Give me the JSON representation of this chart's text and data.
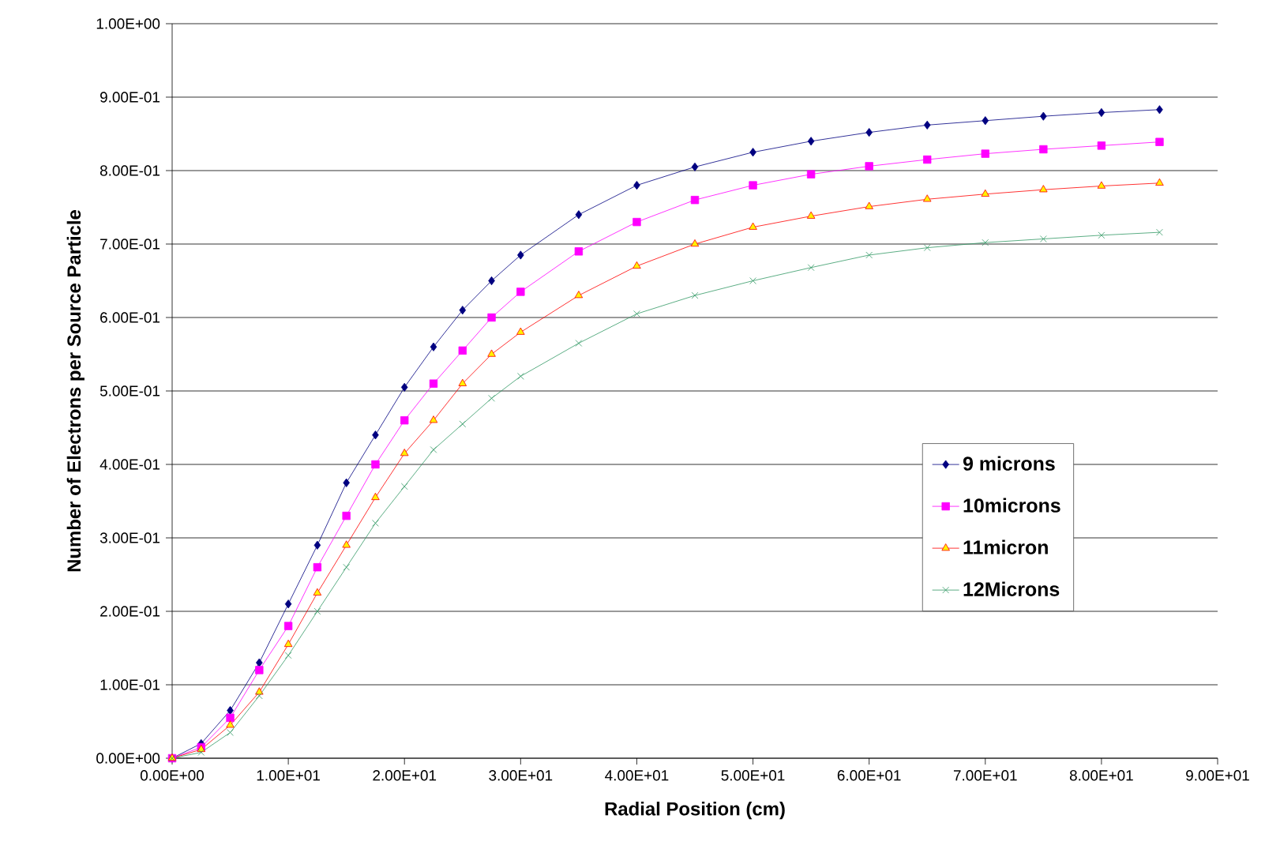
{
  "chart_data": {
    "type": "line",
    "xlabel": "Radial Position (cm)",
    "ylabel": "Number of Electrons per Source Particle",
    "x": [
      0,
      2.5,
      5,
      7.5,
      10,
      12.5,
      15,
      17.5,
      20,
      22.5,
      25,
      27.5,
      30,
      35,
      40,
      45,
      50,
      55,
      60,
      65,
      70,
      75,
      80,
      85
    ],
    "series": [
      {
        "name": "9 microns",
        "color": "#000080",
        "marker": "diamond",
        "values": [
          0,
          0.02,
          0.065,
          0.13,
          0.21,
          0.29,
          0.375,
          0.44,
          0.505,
          0.56,
          0.61,
          0.65,
          0.685,
          0.74,
          0.78,
          0.805,
          0.825,
          0.84,
          0.852,
          0.862,
          0.868,
          0.874,
          0.879,
          0.883
        ]
      },
      {
        "name": "10microns",
        "color": "#ff00ff",
        "marker": "square",
        "values": [
          0,
          0.015,
          0.055,
          0.12,
          0.18,
          0.26,
          0.33,
          0.4,
          0.46,
          0.51,
          0.555,
          0.6,
          0.635,
          0.69,
          0.73,
          0.76,
          0.78,
          0.795,
          0.806,
          0.815,
          0.823,
          0.829,
          0.834,
          0.839
        ]
      },
      {
        "name": "11micron",
        "color": "#ff0000",
        "marker": "triangle",
        "values": [
          0,
          0.012,
          0.045,
          0.09,
          0.155,
          0.225,
          0.29,
          0.355,
          0.415,
          0.46,
          0.51,
          0.55,
          0.58,
          0.63,
          0.67,
          0.7,
          0.723,
          0.738,
          0.751,
          0.761,
          0.768,
          0.774,
          0.779,
          0.783
        ]
      },
      {
        "name": "12Microns",
        "color": "#339966",
        "marker": "cross",
        "values": [
          0,
          0.008,
          0.035,
          0.085,
          0.14,
          0.2,
          0.26,
          0.32,
          0.37,
          0.42,
          0.455,
          0.49,
          0.52,
          0.565,
          0.605,
          0.63,
          0.65,
          0.668,
          0.685,
          0.695,
          0.702,
          0.707,
          0.712,
          0.716
        ]
      }
    ],
    "xlim": [
      0,
      90
    ],
    "ylim": [
      0,
      1
    ],
    "xticks": [
      {
        "value": 0,
        "label": "0.00E+00"
      },
      {
        "value": 10,
        "label": "1.00E+01"
      },
      {
        "value": 20,
        "label": "2.00E+01"
      },
      {
        "value": 30,
        "label": "3.00E+01"
      },
      {
        "value": 40,
        "label": "4.00E+01"
      },
      {
        "value": 50,
        "label": "5.00E+01"
      },
      {
        "value": 60,
        "label": "6.00E+01"
      },
      {
        "value": 70,
        "label": "7.00E+01"
      },
      {
        "value": 80,
        "label": "8.00E+01"
      },
      {
        "value": 90,
        "label": "9.00E+01"
      }
    ],
    "yticks": [
      {
        "value": 0,
        "label": "0.00E+00"
      },
      {
        "value": 0.1,
        "label": "1.00E-01"
      },
      {
        "value": 0.2,
        "label": "2.00E-01"
      },
      {
        "value": 0.3,
        "label": "3.00E-01"
      },
      {
        "value": 0.4,
        "label": "4.00E-01"
      },
      {
        "value": 0.5,
        "label": "5.00E-01"
      },
      {
        "value": 0.6,
        "label": "6.00E-01"
      },
      {
        "value": 0.7,
        "label": "7.00E-01"
      },
      {
        "value": 0.8,
        "label": "8.00E-01"
      },
      {
        "value": 0.9,
        "label": "9.00E-01"
      },
      {
        "value": 1,
        "label": "1.00E+00"
      }
    ],
    "grid": "y",
    "legend": "right",
    "line_style": "solid"
  }
}
